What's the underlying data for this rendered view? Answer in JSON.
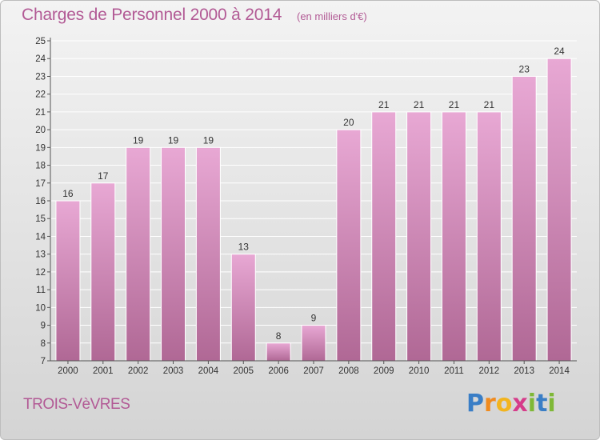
{
  "header": {
    "title": "Charges de Personnel 2000 à 2014",
    "subtitle": "(en milliers d'€)"
  },
  "footer": {
    "commune": "TROIS-VèVRES",
    "logo": {
      "letters": [
        "P",
        "r",
        "o",
        "x",
        "i",
        "t",
        "i"
      ],
      "colors": [
        "#3a7ec6",
        "#f08b1f",
        "#f2b41e",
        "#d63c8a",
        "#7fb837",
        "#3a7ec6",
        "#7fb837"
      ]
    }
  },
  "colors": {
    "bar_top": "#e8a8d4",
    "bar_bottom": "#b06895",
    "bar_stroke": "#ffffff",
    "title": "#b25a95",
    "axis": "#555555",
    "grid": "#ffffff"
  },
  "chart_data": {
    "type": "bar",
    "categories": [
      "2000",
      "2001",
      "2002",
      "2003",
      "2004",
      "2005",
      "2006",
      "2007",
      "2008",
      "2009",
      "2010",
      "2011",
      "2012",
      "2013",
      "2014"
    ],
    "values": [
      16,
      17,
      19,
      19,
      19,
      13,
      8,
      9,
      20,
      21,
      21,
      21,
      21,
      23,
      24
    ],
    "ylim": [
      7,
      25
    ],
    "yticks": [
      7,
      8,
      9,
      10,
      11,
      12,
      13,
      14,
      15,
      16,
      17,
      18,
      19,
      20,
      21,
      22,
      23,
      24,
      25
    ],
    "grid": true,
    "legend": false
  }
}
